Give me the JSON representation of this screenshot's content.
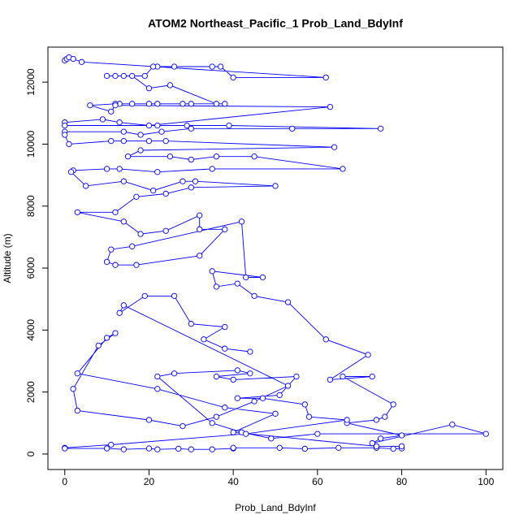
{
  "chart_data": {
    "type": "line",
    "title": "ATOM2 Northeast_Pacific_1 Prob_Land_BdyInf",
    "xlabel": "Prob_Land_BdyInf",
    "ylabel": "Altitude (m)",
    "color": "#0000ff",
    "markers": true,
    "xlim": [
      -4,
      104
    ],
    "ylim": [
      -500,
      13130
    ],
    "xticks": [
      0,
      20,
      40,
      60,
      80,
      100
    ],
    "yticks": [
      0,
      2000,
      4000,
      6000,
      8000,
      10000,
      12000
    ],
    "x": [
      0,
      0.5,
      1,
      2,
      4,
      62,
      40,
      37,
      35,
      26,
      22,
      21,
      19,
      14,
      12,
      10,
      16,
      20,
      25,
      36,
      38,
      30,
      28,
      22,
      20,
      16,
      13,
      12,
      6,
      11,
      12,
      63,
      20,
      13,
      9,
      0,
      0,
      22,
      29,
      39,
      75,
      54,
      30,
      23,
      18,
      14,
      0,
      0,
      1,
      11,
      14,
      20,
      24,
      64,
      18,
      15,
      25,
      30,
      36,
      45,
      66,
      35,
      22,
      13,
      10,
      2,
      1.5,
      5,
      14,
      21,
      28,
      31,
      50,
      30,
      24,
      17,
      12,
      3,
      14,
      18,
      24,
      32,
      32,
      38,
      32,
      17,
      12,
      10,
      11,
      16,
      42,
      43,
      47,
      35,
      36,
      41,
      45,
      53,
      62,
      72,
      63,
      73,
      66,
      78,
      76,
      74,
      67,
      80,
      75,
      73,
      92,
      100,
      60,
      49,
      42,
      35,
      22,
      26,
      41,
      44,
      36,
      40,
      55,
      51,
      41,
      47,
      57,
      58,
      67,
      43,
      11,
      0,
      0,
      10,
      14,
      20,
      22,
      27,
      30,
      35,
      40,
      40,
      51,
      57,
      65,
      74,
      78,
      80,
      80,
      74,
      40,
      50,
      38,
      22,
      3,
      10,
      12,
      8,
      2,
      3,
      20,
      28,
      36,
      45,
      53,
      14,
      13,
      19,
      26,
      30,
      38,
      33,
      38,
      44
    ],
    "values": [
      12700,
      12750,
      12800,
      12750,
      12650,
      12150,
      12150,
      12500,
      12500,
      12500,
      12500,
      12500,
      12200,
      12200,
      12200,
      12200,
      12200,
      11800,
      11900,
      11300,
      11300,
      11300,
      11300,
      11300,
      11300,
      11300,
      11300,
      11300,
      11250,
      11050,
      11250,
      11200,
      10600,
      10700,
      10800,
      10700,
      10600,
      10600,
      10600,
      10600,
      10500,
      10500,
      10500,
      10400,
      10300,
      10400,
      10400,
      10300,
      10000,
      10100,
      10100,
      10100,
      10100,
      9900,
      9800,
      9600,
      9600,
      9500,
      9600,
      9600,
      9200,
      9200,
      9100,
      9200,
      9200,
      9150,
      9100,
      8650,
      8800,
      8500,
      8800,
      8800,
      8650,
      8600,
      8400,
      8300,
      7800,
      7800,
      7500,
      7100,
      7200,
      7700,
      7250,
      7250,
      6400,
      6100,
      6100,
      6200,
      6600,
      6700,
      7500,
      5700,
      5700,
      5900,
      5400,
      5500,
      5100,
      4900,
      3700,
      3200,
      2400,
      2500,
      2500,
      1600,
      1200,
      1100,
      1000,
      600,
      500,
      350,
      950,
      650,
      650,
      500,
      700,
      1000,
      2500,
      2600,
      2700,
      2600,
      2500,
      2400,
      2500,
      1900,
      1800,
      1800,
      1600,
      1200,
      1100,
      650,
      300,
      200,
      180,
      180,
      150,
      180,
      150,
      170,
      150,
      150,
      180,
      200,
      200,
      170,
      200,
      200,
      170,
      180,
      250,
      250,
      700,
      1300,
      1500,
      2100,
      2600,
      3750,
      3900,
      3500,
      2100,
      1400,
      1100,
      900,
      1200,
      1700,
      2200,
      4800,
      4550,
      5100,
      5100,
      4200,
      4100,
      3700,
      3400,
      3300
    ]
  }
}
